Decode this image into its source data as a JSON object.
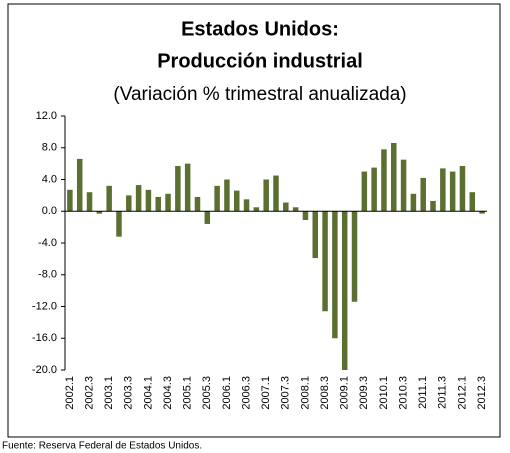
{
  "chart_data": {
    "type": "bar",
    "title": [
      "Estados Unidos:",
      "Producción industrial"
    ],
    "subtitle": "(Variación % trimestral anualizada)",
    "footnote": "Fuente: Reserva  Federal  de Estados Unidos.",
    "categories": [
      "2002.1",
      null,
      "2002.3",
      null,
      "2003.1",
      null,
      "2003.3",
      null,
      "2004.1",
      null,
      "2004.3",
      null,
      "2005.1",
      null,
      "2005.3",
      null,
      "2006.1",
      null,
      "2006.3",
      null,
      "2007.1",
      null,
      "2007.3",
      null,
      "2008.1",
      null,
      "2008.3",
      null,
      "2009.1",
      null,
      "2009.3",
      null,
      "2010.1",
      null,
      "2010.3",
      null,
      "2011.1",
      null,
      "2011.3",
      null,
      "2012.1",
      null,
      "2012.3"
    ],
    "values": [
      2.7,
      6.6,
      2.4,
      -0.3,
      3.2,
      -3.2,
      2.0,
      3.3,
      2.7,
      1.8,
      2.2,
      5.7,
      6.0,
      1.8,
      -1.6,
      3.2,
      4.0,
      2.6,
      1.5,
      0.5,
      4.0,
      4.5,
      1.1,
      0.5,
      -1.1,
      -5.9,
      -12.6,
      -16.0,
      -20.0,
      -11.4,
      5.0,
      5.5,
      7.8,
      8.6,
      6.5,
      2.2,
      4.2,
      1.3,
      5.4,
      5.0,
      5.7,
      2.4,
      -0.3
    ],
    "color": "#5b7030",
    "ylim": [
      -20,
      12
    ],
    "yticks": [
      {
        "value": 12,
        "label": "12.0"
      },
      {
        "value": 8,
        "label": "8.0"
      },
      {
        "value": 4,
        "label": "4.0"
      },
      {
        "value": 0,
        "label": "0.0"
      },
      {
        "value": -4,
        "label": "-4.0"
      },
      {
        "value": -8,
        "label": "-8.0"
      },
      {
        "value": -12,
        "label": "-12.0"
      },
      {
        "value": -16,
        "label": "-16.0"
      },
      {
        "value": -20,
        "label": "-20.0"
      }
    ],
    "grid": false
  }
}
